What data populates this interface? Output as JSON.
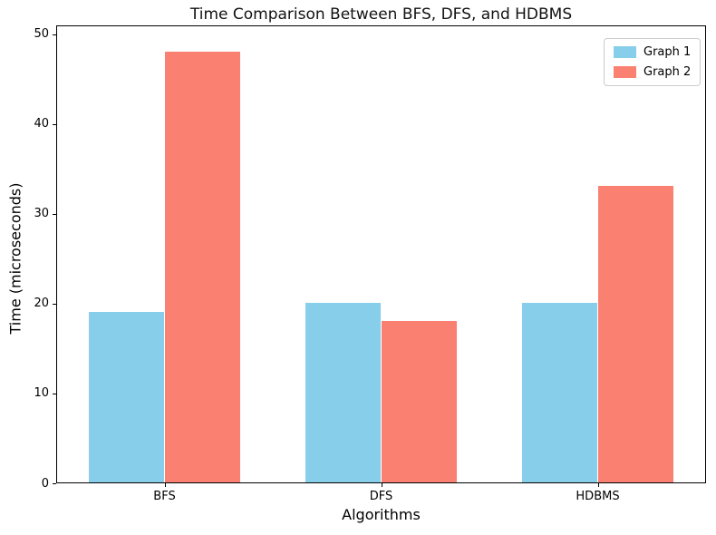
{
  "chart_data": {
    "type": "bar",
    "title": "Time Comparison Between BFS, DFS, and HDBMS",
    "xlabel": "Algorithms",
    "ylabel": "Time (microseconds)",
    "categories": [
      "BFS",
      "DFS",
      "HDBMS"
    ],
    "series": [
      {
        "name": "Graph 1",
        "color": "#87CEEB",
        "values": [
          19,
          20,
          20
        ]
      },
      {
        "name": "Graph 2",
        "color": "#FA8072",
        "values": [
          48,
          18,
          33
        ]
      }
    ],
    "ylim": [
      0,
      51
    ],
    "yticks": [
      0,
      10,
      20,
      30,
      40,
      50
    ],
    "xlim": [
      -0.5,
      2.5
    ],
    "bar_width": 0.35,
    "grid": false,
    "legend_position": "upper-right",
    "axis_color": "#000000",
    "background_color": "#ffffff"
  }
}
